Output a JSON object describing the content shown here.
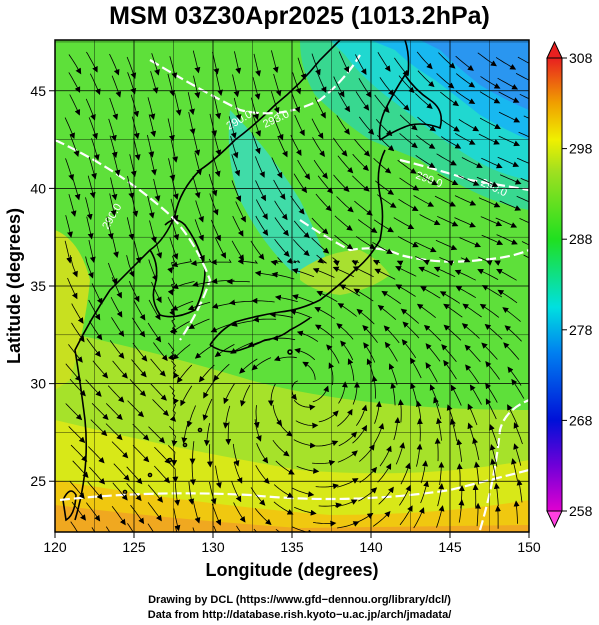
{
  "title": "MSM 03Z30Apr2025 (1013.2hPa)",
  "chart_data": {
    "type": "map",
    "xlabel": "Longitude (degrees)",
    "ylabel": "Latitude  (degrees)",
    "xlim": [
      120,
      150
    ],
    "ylim": [
      22.4,
      47.6
    ],
    "x_ticks": [
      120,
      125,
      130,
      135,
      140,
      145,
      150
    ],
    "y_ticks": [
      25,
      30,
      35,
      40,
      45
    ],
    "colorbar": {
      "min": 258,
      "max": 308,
      "ticks": [
        258,
        268,
        278,
        288,
        298,
        308
      ],
      "colors": [
        "#e000d0",
        "#7000d8",
        "#0010d8",
        "#0080f0",
        "#00e0e0",
        "#20e020",
        "#a0e020",
        "#f0f000",
        "#f0a000",
        "#e82020"
      ]
    },
    "contour_labels": [
      "290.0",
      "293.0",
      "290.0",
      "290.0",
      "290.0"
    ],
    "grid": true
  },
  "credit": {
    "line1": "Drawing by DCL (https://www.gfd−dennou.org/library/dcl/)",
    "line2": "Data from http://database.rish.kyoto−u.ac.jp/arch/jmadata/"
  }
}
